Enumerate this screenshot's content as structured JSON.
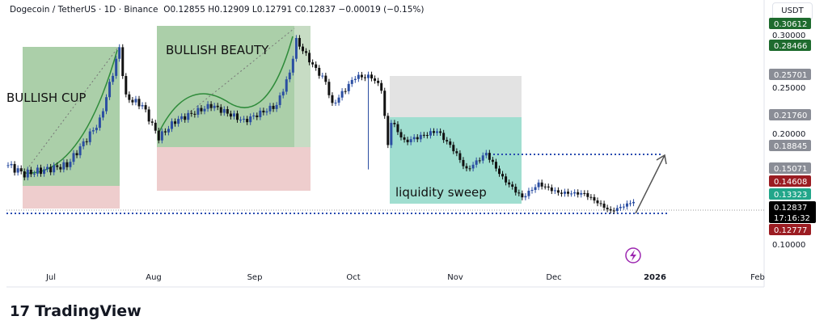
{
  "header": {
    "title": "Dogecoin / TetherUS · 1D · Binance",
    "ohlc": "O0.12855  H0.12909  L0.12791  C0.12837  −0.00019 (−0.15%)"
  },
  "currency": "USDT",
  "brand": "TradingView",
  "chart_data": {
    "type": "candlestick",
    "x_ticks": [
      "Jul",
      "Aug",
      "Sep",
      "Oct",
      "Nov",
      "Dec",
      "2026",
      "Feb"
    ],
    "y_ticks": [
      "0.30000",
      "0.25000",
      "0.20000",
      "0.10000"
    ],
    "price_labels": [
      {
        "value": "0.30612",
        "color": "#1e6b2e"
      },
      {
        "value": "0.28466",
        "color": "#1e6b2e"
      },
      {
        "value": "0.25701",
        "color": "#8a8d96"
      },
      {
        "value": "0.21760",
        "color": "#8a8d96"
      },
      {
        "value": "0.18845",
        "color": "#8a8d96"
      },
      {
        "value": "0.15071",
        "color": "#8a8d96"
      },
      {
        "value": "0.14608",
        "color": "#9b1c22"
      },
      {
        "value": "0.13323",
        "color": "#22a68a"
      },
      {
        "value": "0.12837",
        "color": "#000000",
        "sub": "17:16:32"
      },
      {
        "value": "0.12777",
        "color": "#9b1c22"
      }
    ],
    "close_anchors_by_day": [
      [
        0,
        0.165
      ],
      [
        5,
        0.156
      ],
      [
        18,
        0.165
      ],
      [
        28,
        0.21
      ],
      [
        34,
        0.284
      ],
      [
        36,
        0.234
      ],
      [
        41,
        0.226
      ],
      [
        46,
        0.193
      ],
      [
        51,
        0.21
      ],
      [
        62,
        0.226
      ],
      [
        72,
        0.21
      ],
      [
        82,
        0.226
      ],
      [
        86,
        0.259
      ],
      [
        88,
        0.292
      ],
      [
        93,
        0.267
      ],
      [
        97,
        0.25
      ],
      [
        99,
        0.226
      ],
      [
        106,
        0.255
      ],
      [
        111,
        0.255
      ],
      [
        114,
        0.243
      ],
      [
        116,
        0.185
      ],
      [
        117,
        0.21
      ],
      [
        121,
        0.189
      ],
      [
        131,
        0.2
      ],
      [
        136,
        0.181
      ],
      [
        140,
        0.16
      ],
      [
        146,
        0.177
      ],
      [
        151,
        0.152
      ],
      [
        157,
        0.132
      ],
      [
        162,
        0.146
      ],
      [
        168,
        0.137
      ],
      [
        176,
        0.136
      ],
      [
        184,
        0.118
      ],
      [
        191,
        0.128
      ]
    ],
    "annotations": [
      "BULLISH CUP",
      "BULLISH BEAUTY",
      "liquidity sweep"
    ]
  }
}
